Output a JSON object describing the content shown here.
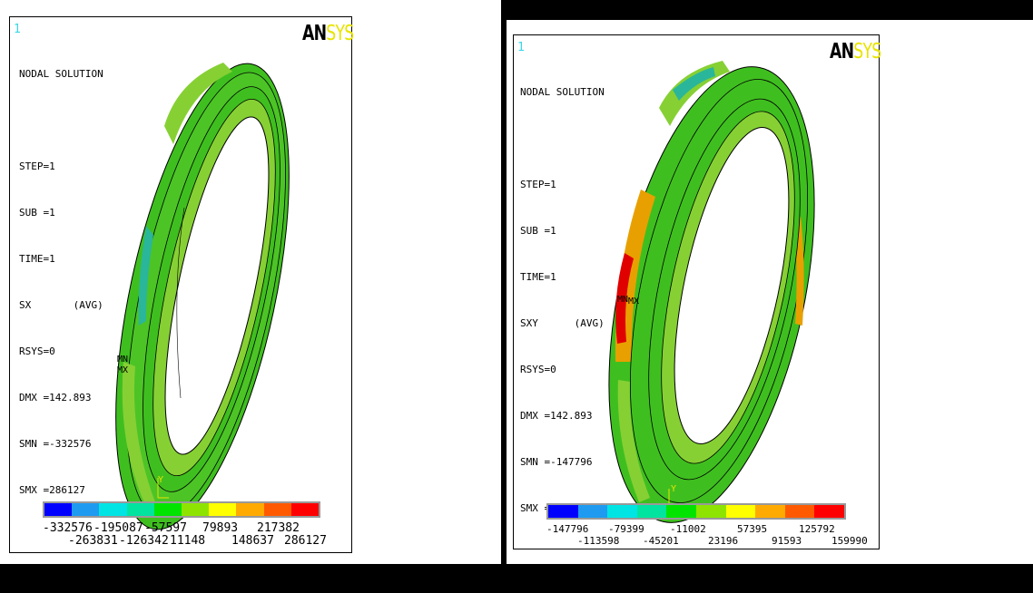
{
  "left": {
    "window_number": "1",
    "brand": {
      "an": "AN",
      "sys": "SYS"
    },
    "info": [
      "NODAL SOLUTION",
      "",
      "STEP=1",
      "SUB =1",
      "TIME=1",
      "SX       (AVG)",
      "RSYS=0",
      "DMX =142.893",
      "SMN =-332576",
      "SMX =286127"
    ],
    "legend_top": [
      "-332576",
      "-195087",
      "-57597",
      "79893",
      "217382"
    ],
    "legend_bottom": [
      "-263831",
      "-126342",
      "11148",
      "148637",
      "286127"
    ],
    "mn_label": "MN",
    "mx_label": "MX",
    "axis_label": "Y"
  },
  "right": {
    "window_number": "1",
    "brand": {
      "an": "AN",
      "sys": "SYS"
    },
    "info": [
      "NODAL SOLUTION",
      "",
      "STEP=1",
      "SUB =1",
      "TIME=1",
      "SXY      (AVG)",
      "RSYS=0",
      "DMX =142.893",
      "SMN =-147796",
      "SMX =159990"
    ],
    "legend_top": [
      "-147796",
      "-79399",
      "-11002",
      "57395",
      "125792"
    ],
    "legend_bottom": [
      "-113598",
      "-45201",
      "23196",
      "91593",
      "159990"
    ],
    "mn_label": "MN",
    "mx_label": "MX",
    "axis_label": "Y"
  },
  "colors": {
    "scale": [
      "#0000ff",
      "#1e9bf0",
      "#00e4e4",
      "#00e4a0",
      "#00e400",
      "#8ee400",
      "#ffff00",
      "#ffaa00",
      "#ff5a00",
      "#ff0000"
    ],
    "ring_main": "#3fbf1f",
    "ring_light": "#86d034",
    "ring_cyan": "#2ab69a",
    "ring_orange": "#e8a000",
    "ring_red": "#e00000"
  }
}
